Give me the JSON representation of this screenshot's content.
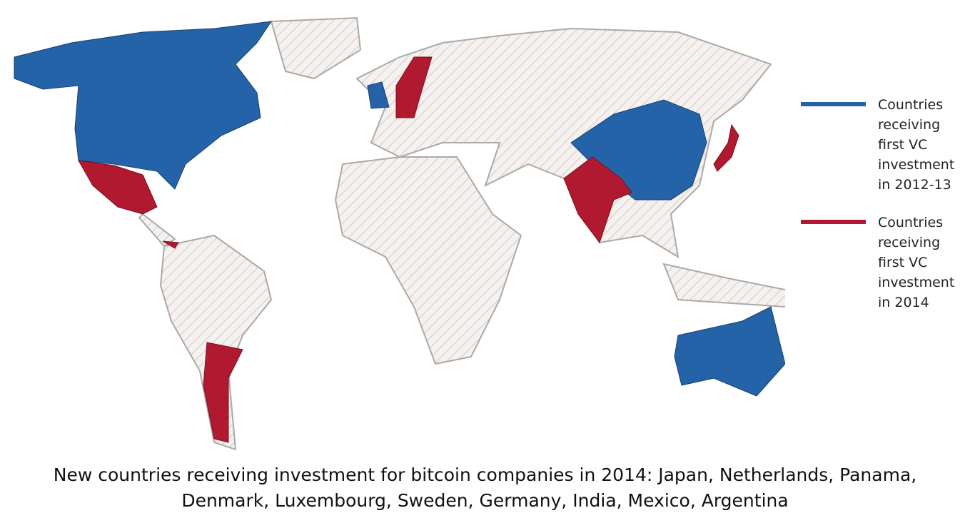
{
  "legend": [
    {
      "label": "Countries receiving first VC investment in 2012-13",
      "color": "#2463a8"
    },
    {
      "label": "Countries receiving first VC investment in 2014",
      "color": "#b0192f"
    }
  ],
  "caption": "New countries receiving investment for bitcoin companies in 2014: Japan, Netherlands, Panama, Denmark, Luxembourg, Sweden, Germany, India, Mexico, Argentina"
}
